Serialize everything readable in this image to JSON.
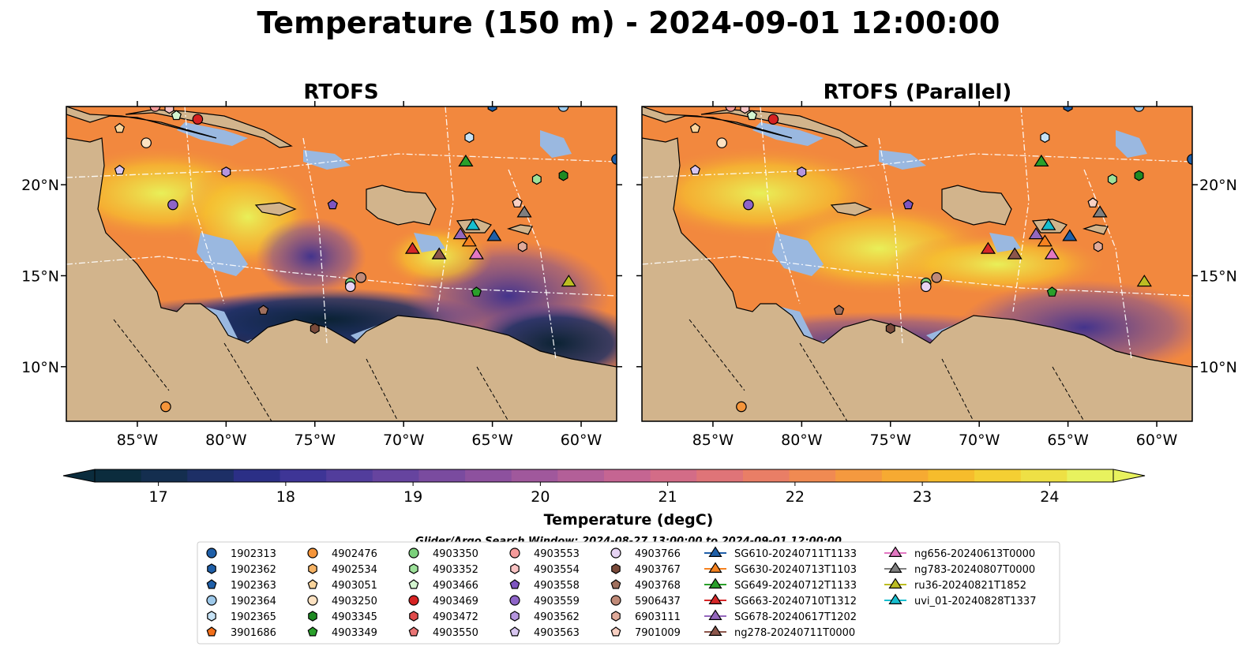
{
  "title": "Temperature (150 m) - 2024-09-01 12:00:00",
  "panels": [
    {
      "title": "RTOFS"
    },
    {
      "title": "RTOFS (Parallel)"
    }
  ],
  "map": {
    "lon_range": [
      -89,
      -58
    ],
    "lat_range": [
      7,
      24.3
    ],
    "lon_ticks": [
      "85°W",
      "80°W",
      "75°W",
      "70°W",
      "65°W",
      "60°W"
    ],
    "lon_values": [
      -85,
      -80,
      -75,
      -70,
      -65,
      -60
    ],
    "lat_ticks": [
      "20°N",
      "15°N",
      "10°N"
    ],
    "lat_values": [
      20,
      15,
      10
    ],
    "colors": {
      "land": "#d2b48c",
      "shelf": "#9ab8e0",
      "cold": "#0a2233",
      "warm": "#f2883e",
      "hot": "#e8f55a"
    }
  },
  "colorbar": {
    "label": "Temperature (degC)",
    "ticks": [
      "17",
      "18",
      "19",
      "20",
      "21",
      "22",
      "23",
      "24"
    ],
    "values": [
      17,
      18,
      19,
      20,
      21,
      22,
      23,
      24
    ],
    "range": [
      16.5,
      24.5
    ],
    "extend": "both",
    "colors": [
      "#0b2c3d",
      "#142e4f",
      "#1d2f66",
      "#2b2f86",
      "#3e3596",
      "#523d9c",
      "#66449f",
      "#7a4b9f",
      "#8d519e",
      "#a0589c",
      "#b35f98",
      "#c56592",
      "#d36c87",
      "#df7478",
      "#e97e66",
      "#f08a52",
      "#f4993f",
      "#f6aa32",
      "#f6bc2c",
      "#f4cf33",
      "#eee045",
      "#e8f25e"
    ]
  },
  "legend": {
    "title": "Glider/Argo Search Window: 2024-08-27 13:00:00 to 2024-09-01 12:00:00",
    "entries": [
      {
        "label": "1902313",
        "marker": "circle",
        "color": "#1f5fa8"
      },
      {
        "label": "1902362",
        "marker": "hexagon",
        "color": "#1f5fa8"
      },
      {
        "label": "1902363",
        "marker": "pentagon",
        "color": "#1f5fa8"
      },
      {
        "label": "1902364",
        "marker": "circle",
        "color": "#9ec9ea"
      },
      {
        "label": "1902365",
        "marker": "hexagon",
        "color": "#c6e2f5"
      },
      {
        "label": "3901686",
        "marker": "pentagon",
        "color": "#f26f1a"
      },
      {
        "label": "4902476",
        "marker": "circle",
        "color": "#f5953a"
      },
      {
        "label": "4902534",
        "marker": "hexagon",
        "color": "#f6b365"
      },
      {
        "label": "4903051",
        "marker": "pentagon",
        "color": "#fad49c"
      },
      {
        "label": "4903250",
        "marker": "circle",
        "color": "#fde2c2"
      },
      {
        "label": "4903345",
        "marker": "hexagon",
        "color": "#1e8a23"
      },
      {
        "label": "4903349",
        "marker": "pentagon",
        "color": "#2aa02b"
      },
      {
        "label": "4903350",
        "marker": "circle",
        "color": "#7bd07b"
      },
      {
        "label": "4903352",
        "marker": "hexagon",
        "color": "#9de19a"
      },
      {
        "label": "4903466",
        "marker": "pentagon",
        "color": "#d4f5d0"
      },
      {
        "label": "4903469",
        "marker": "circle",
        "color": "#d62222"
      },
      {
        "label": "4903472",
        "marker": "hexagon",
        "color": "#e04b4b"
      },
      {
        "label": "4903550",
        "marker": "pentagon",
        "color": "#ea7575"
      },
      {
        "label": "4903553",
        "marker": "circle",
        "color": "#f49a9a"
      },
      {
        "label": "4903554",
        "marker": "hexagon",
        "color": "#f9c3c3"
      },
      {
        "label": "4903558",
        "marker": "pentagon",
        "color": "#7e55c0"
      },
      {
        "label": "4903559",
        "marker": "circle",
        "color": "#8e64c8"
      },
      {
        "label": "4903562",
        "marker": "hexagon",
        "color": "#b595de"
      },
      {
        "label": "4903563",
        "marker": "pentagon",
        "color": "#d8c6f0"
      },
      {
        "label": "4903766",
        "marker": "circle",
        "color": "#e6d3f3"
      },
      {
        "label": "4903767",
        "marker": "hexagon",
        "color": "#7a4a3a"
      },
      {
        "label": "4903768",
        "marker": "pentagon",
        "color": "#a0705e"
      },
      {
        "label": "5906437",
        "marker": "circle",
        "color": "#c08a78"
      },
      {
        "label": "6903111",
        "marker": "hexagon",
        "color": "#e0aa9a"
      },
      {
        "label": "7901009",
        "marker": "pentagon",
        "color": "#f8d0c3"
      },
      {
        "label": "SG610-20240711T1133",
        "marker": "triangle",
        "color": "#1f5fa8"
      },
      {
        "label": "SG630-20240713T1103",
        "marker": "triangle",
        "color": "#f58220"
      },
      {
        "label": "SG649-20240712T1133",
        "marker": "triangle",
        "color": "#2aa02b"
      },
      {
        "label": "SG663-20240710T1312",
        "marker": "triangle",
        "color": "#d62728"
      },
      {
        "label": "SG678-20240617T1202",
        "marker": "triangle",
        "color": "#9467bd"
      },
      {
        "label": "ng278-20240711T0000",
        "marker": "triangle",
        "color": "#8c564b"
      },
      {
        "label": "ng656-20240613T0000",
        "marker": "triangle",
        "color": "#e377c2"
      },
      {
        "label": "ng783-20240807T0000",
        "marker": "triangle",
        "color": "#7f7f7f"
      },
      {
        "label": "ru36-20240821T1852",
        "marker": "triangle",
        "color": "#bcbd22"
      },
      {
        "label": "uvi_01-20240828T1337",
        "marker": "triangle",
        "color": "#17becf"
      }
    ]
  },
  "observations": [
    {
      "id": "4903553",
      "lon": -84.0,
      "lat": 24.3
    },
    {
      "id": "4903554",
      "lon": -83.2,
      "lat": 24.2
    },
    {
      "id": "4903469",
      "lon": -81.6,
      "lat": 23.6
    },
    {
      "id": "4903466",
      "lon": -82.8,
      "lat": 23.8
    },
    {
      "id": "4903051",
      "lon": -86.0,
      "lat": 23.1
    },
    {
      "id": "4903250",
      "lon": -84.5,
      "lat": 22.3
    },
    {
      "id": "4903563",
      "lon": -86.0,
      "lat": 20.8
    },
    {
      "id": "4903562",
      "lon": -80.0,
      "lat": 20.7
    },
    {
      "id": "4903559",
      "lon": -83.0,
      "lat": 18.9
    },
    {
      "id": "4903558",
      "lon": -74.0,
      "lat": 18.9
    },
    {
      "id": "4903350",
      "lon": -73.0,
      "lat": 14.6
    },
    {
      "id": "4903766",
      "lon": -73.0,
      "lat": 14.4
    },
    {
      "id": "5906437",
      "lon": -72.4,
      "lat": 14.9
    },
    {
      "id": "4903768",
      "lon": -77.9,
      "lat": 13.1
    },
    {
      "id": "4903767",
      "lon": -75.0,
      "lat": 12.1
    },
    {
      "id": "4902476",
      "lon": -83.4,
      "lat": 7.8
    },
    {
      "id": "1902365",
      "lon": -66.3,
      "lat": 22.6
    },
    {
      "id": "4903352",
      "lon": -62.5,
      "lat": 20.3
    },
    {
      "id": "4903345",
      "lon": -61.0,
      "lat": 20.5
    },
    {
      "id": "4903349",
      "lon": -65.9,
      "lat": 14.1
    },
    {
      "id": "1902362",
      "lon": -65.0,
      "lat": 24.3
    },
    {
      "id": "1902364",
      "lon": -61.0,
      "lat": 24.3
    },
    {
      "id": "1902313",
      "lon": -58.0,
      "lat": 21.4
    },
    {
      "id": "7901009",
      "lon": -63.6,
      "lat": 19.0
    },
    {
      "id": "6903111",
      "lon": -63.3,
      "lat": 16.6
    },
    {
      "id": "SG649-20240712T1133",
      "lon": -66.5,
      "lat": 21.3
    },
    {
      "id": "SG630-20240713T1103",
      "lon": -66.3,
      "lat": 16.9
    },
    {
      "id": "SG663-20240710T1312",
      "lon": -69.5,
      "lat": 16.5
    },
    {
      "id": "ng278-20240711T0000",
      "lon": -68.0,
      "lat": 16.2
    },
    {
      "id": "SG678-20240617T1202",
      "lon": -66.8,
      "lat": 17.3
    },
    {
      "id": "ng656-20240613T0000",
      "lon": -65.9,
      "lat": 16.2
    },
    {
      "id": "uvi_01-20240828T1337",
      "lon": -66.1,
      "lat": 17.8
    },
    {
      "id": "SG610-20240711T1133",
      "lon": -64.9,
      "lat": 17.2
    },
    {
      "id": "ng783-20240807T0000",
      "lon": -63.2,
      "lat": 18.5
    },
    {
      "id": "ru36-20240821T1852",
      "lon": -60.7,
      "lat": 14.7
    }
  ]
}
